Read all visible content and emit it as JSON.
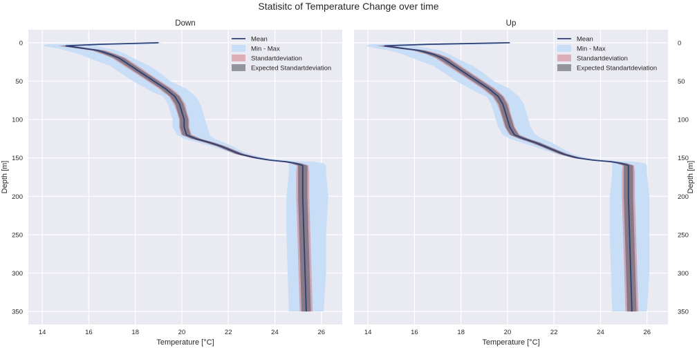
{
  "figure": {
    "suptitle": "Statisitc of Temperature Change over time",
    "background": "#ffffff"
  },
  "chart_data": [
    {
      "type": "line",
      "title": "Down",
      "xlabel": "Temperature [°C]",
      "ylabel": "Depth [m]",
      "xlim": [
        13.4,
        26.9
      ],
      "ylim": [
        367,
        -17
      ],
      "y_inverted": true,
      "xticks": [
        14,
        16,
        18,
        20,
        22,
        24,
        26
      ],
      "yticks": [
        0,
        50,
        100,
        150,
        200,
        250,
        300,
        350
      ],
      "ytick_side": "left",
      "ylabel_side": "left",
      "grid": true,
      "legend": {
        "position": "top-right",
        "entries": [
          "Mean",
          "Min - Max",
          "Standartdeviation",
          "Expected Standartdeviation"
        ]
      },
      "colors": {
        "mean": "#2d3f74",
        "minmax": "#c4dcf6",
        "std": "#d17d8a",
        "expected_std": "#5a5a62"
      },
      "depth": [
        0,
        2,
        4,
        7,
        10,
        15,
        20,
        30,
        40,
        50,
        60,
        65,
        70,
        80,
        90,
        100,
        110,
        120,
        125,
        130,
        135,
        140,
        145,
        150,
        153,
        155,
        157,
        160,
        170,
        200,
        250,
        300,
        350
      ],
      "mean": [
        19.0,
        16.5,
        15.0,
        15.7,
        16.4,
        16.9,
        17.3,
        17.8,
        18.3,
        18.8,
        19.3,
        19.5,
        19.7,
        19.9,
        20.0,
        20.1,
        20.1,
        20.2,
        20.6,
        21.2,
        21.7,
        22.1,
        22.5,
        23.2,
        23.8,
        24.5,
        24.9,
        25.2,
        25.2,
        25.2,
        25.25,
        25.3,
        25.35
      ],
      "min": [
        18.9,
        14.2,
        14.0,
        14.6,
        15.0,
        15.6,
        16.0,
        16.9,
        17.4,
        17.9,
        18.5,
        18.8,
        19.2,
        19.4,
        19.5,
        19.6,
        19.6,
        19.8,
        20.1,
        20.7,
        21.3,
        21.8,
        22.3,
        23.0,
        23.6,
        24.3,
        24.6,
        24.6,
        24.6,
        24.5,
        24.5,
        24.55,
        24.6
      ],
      "max": [
        19.2,
        18.8,
        16.2,
        16.8,
        17.2,
        17.6,
        17.9,
        18.6,
        19.1,
        19.5,
        20.2,
        20.4,
        20.6,
        20.8,
        20.9,
        21.0,
        21.1,
        21.2,
        21.4,
        21.8,
        22.2,
        22.5,
        22.9,
        23.6,
        24.3,
        25.6,
        26.1,
        26.2,
        26.2,
        26.3,
        26.2,
        26.2,
        26.1
      ],
      "std_half_width": [
        0.08,
        0.3,
        0.35,
        0.3,
        0.3,
        0.3,
        0.3,
        0.3,
        0.28,
        0.28,
        0.28,
        0.28,
        0.25,
        0.25,
        0.22,
        0.22,
        0.22,
        0.22,
        0.22,
        0.22,
        0.2,
        0.2,
        0.2,
        0.2,
        0.2,
        0.2,
        0.25,
        0.25,
        0.28,
        0.28,
        0.28,
        0.28,
        0.28
      ],
      "expected_std_half_width": [
        0.05,
        0.2,
        0.25,
        0.22,
        0.22,
        0.22,
        0.22,
        0.2,
        0.2,
        0.2,
        0.2,
        0.2,
        0.2,
        0.18,
        0.18,
        0.18,
        0.18,
        0.18,
        0.18,
        0.18,
        0.16,
        0.16,
        0.16,
        0.16,
        0.16,
        0.16,
        0.2,
        0.2,
        0.2,
        0.2,
        0.2,
        0.2,
        0.2
      ]
    },
    {
      "type": "line",
      "title": "Up",
      "xlabel": "Temperature [°C]",
      "ylabel": "Depth [m]",
      "xlim": [
        13.4,
        26.9
      ],
      "ylim": [
        367,
        -17
      ],
      "y_inverted": true,
      "xticks": [
        14,
        16,
        18,
        20,
        22,
        24,
        26
      ],
      "yticks": [
        0,
        50,
        100,
        150,
        200,
        250,
        300,
        350
      ],
      "ytick_side": "right",
      "ylabel_side": "right",
      "grid": true,
      "legend": {
        "position": "top-right",
        "entries": [
          "Mean",
          "Min - Max",
          "Standartdeviation",
          "Expected Standartdeviation"
        ]
      },
      "colors": {
        "mean": "#2d3f74",
        "minmax": "#c4dcf6",
        "std": "#d17d8a",
        "expected_std": "#5a5a62"
      },
      "depth": [
        0,
        2,
        4,
        7,
        10,
        15,
        20,
        30,
        40,
        50,
        60,
        65,
        70,
        80,
        90,
        100,
        110,
        120,
        125,
        130,
        135,
        140,
        145,
        150,
        153,
        155,
        157,
        160,
        170,
        200,
        250,
        300,
        350
      ],
      "mean": [
        20.1,
        16.6,
        14.7,
        15.4,
        16.2,
        16.8,
        17.2,
        17.7,
        18.2,
        18.7,
        19.2,
        19.4,
        19.6,
        19.8,
        19.9,
        20.0,
        20.1,
        20.3,
        20.7,
        21.2,
        21.6,
        22.0,
        22.4,
        23.0,
        23.7,
        24.5,
        24.9,
        25.2,
        25.2,
        25.2,
        25.25,
        25.3,
        25.35
      ],
      "min": [
        20.0,
        14.1,
        13.9,
        14.3,
        14.9,
        15.5,
        15.9,
        16.8,
        17.3,
        17.8,
        18.4,
        18.7,
        19.1,
        19.3,
        19.4,
        19.5,
        19.6,
        19.8,
        20.1,
        20.6,
        21.1,
        21.6,
        22.1,
        22.8,
        23.5,
        24.3,
        24.5,
        24.5,
        24.5,
        24.4,
        24.4,
        24.45,
        24.5
      ],
      "max": [
        20.3,
        19.5,
        16.0,
        16.6,
        17.1,
        17.5,
        17.8,
        18.5,
        19.0,
        19.4,
        20.1,
        20.3,
        20.5,
        20.7,
        20.8,
        20.9,
        21.0,
        21.2,
        21.5,
        21.9,
        22.2,
        22.5,
        22.8,
        23.4,
        24.1,
        25.5,
        25.9,
        26.0,
        26.0,
        26.1,
        26.1,
        26.1,
        26.0
      ],
      "std_half_width": [
        0.08,
        0.3,
        0.35,
        0.3,
        0.3,
        0.3,
        0.3,
        0.3,
        0.28,
        0.28,
        0.28,
        0.28,
        0.25,
        0.25,
        0.22,
        0.22,
        0.22,
        0.22,
        0.22,
        0.22,
        0.2,
        0.2,
        0.2,
        0.2,
        0.2,
        0.2,
        0.25,
        0.25,
        0.28,
        0.28,
        0.28,
        0.28,
        0.28
      ],
      "expected_std_half_width": [
        0.05,
        0.2,
        0.25,
        0.22,
        0.22,
        0.22,
        0.22,
        0.2,
        0.2,
        0.2,
        0.2,
        0.2,
        0.2,
        0.18,
        0.18,
        0.18,
        0.18,
        0.18,
        0.18,
        0.18,
        0.16,
        0.16,
        0.16,
        0.16,
        0.16,
        0.16,
        0.2,
        0.2,
        0.2,
        0.2,
        0.2,
        0.2,
        0.2
      ]
    }
  ]
}
